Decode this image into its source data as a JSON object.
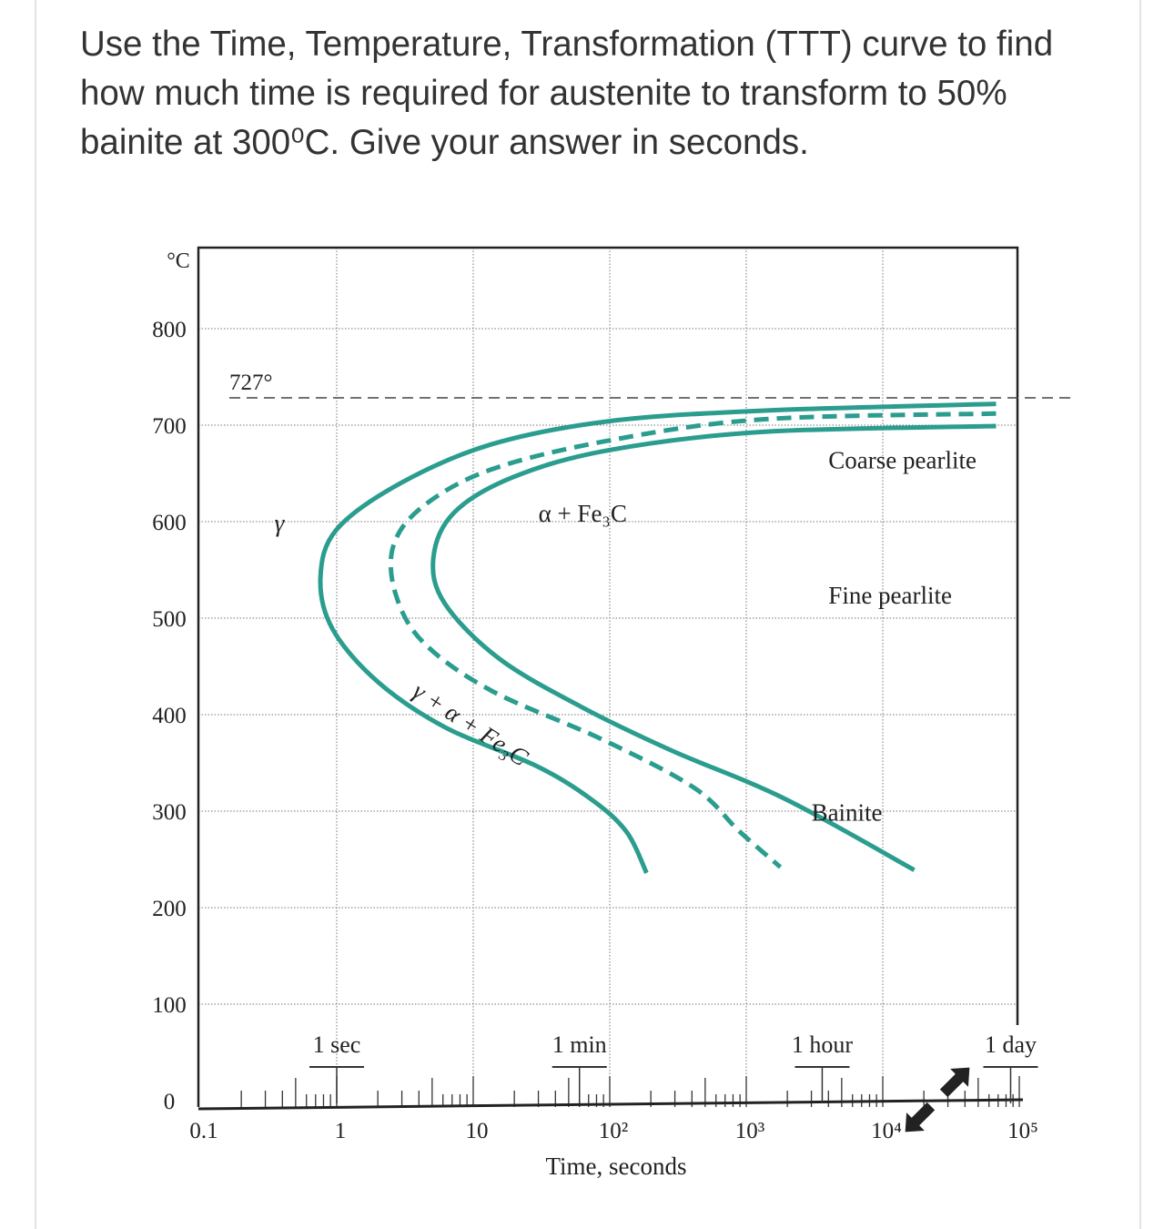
{
  "question": "Use the Time,  Temperature, Transformation (TTT) curve to find how much time is required for austenite to transform to 50% bainite at 300⁰C. Give your answer in seconds.",
  "chart_data": {
    "type": "line",
    "title": "",
    "xlabel": "Time, seconds",
    "ylabel": "°C",
    "x_scale": "log",
    "xlim": [
      0.1,
      100000
    ],
    "ylim": [
      0,
      880
    ],
    "grid": true,
    "x_ticks": [
      "0.1",
      "1",
      "10",
      "10²",
      "10³",
      "10⁴",
      "10⁵"
    ],
    "x_tick_values": [
      0.1,
      1,
      10,
      100,
      1000,
      10000,
      100000
    ],
    "y_ticks": [
      "0",
      "100",
      "200",
      "300",
      "400",
      "500",
      "600",
      "700",
      "800"
    ],
    "y_tick_values": [
      0,
      100,
      200,
      300,
      400,
      500,
      600,
      700,
      800
    ],
    "eutectoid": {
      "label": "727°",
      "value": 727
    },
    "time_markers": [
      {
        "label": "1 sec",
        "value": 1
      },
      {
        "label": "1 min",
        "value": 60
      },
      {
        "label": "1 hour",
        "value": 3600
      },
      {
        "label": "1 day",
        "value": 86400
      }
    ],
    "series": [
      {
        "style": "solid",
        "color": "#2a9d8f",
        "x": [
          67600,
          1318,
          98,
          13.5,
          2.95,
          1.0,
          0.76,
          0.93,
          2.0,
          6.2,
          28.8,
          72,
          132,
          186
        ],
        "y": [
          722,
          715,
          704,
          680,
          640,
          592,
          542,
          489,
          434,
          387,
          347,
          313,
          279,
          236
        ]
      },
      {
        "style": "dashed",
        "color": "#2a9d8f",
        "x": [
          67600,
          1318,
          98,
          13.5,
          4.3,
          2.6,
          2.7,
          4.3,
          13.5,
          89,
          417,
          891,
          1778
        ],
        "y": [
          712,
          706,
          684,
          654,
          616,
          575,
          525,
          475,
          425,
          374,
          324,
          279,
          242
        ]
      },
      {
        "style": "solid",
        "color": "#2a9d8f",
        "x": [
          67600,
          1318,
          98,
          19.5,
          7.2,
          5.1,
          6.2,
          15.5,
          62,
          282,
          1905,
          17000
        ],
        "y": [
          699,
          693,
          674,
          646,
          609,
          562,
          515,
          458,
          408,
          363,
          313,
          239
        ]
      }
    ],
    "annotations": [
      {
        "text": "γ",
        "x": 0.35,
        "y": 590
      },
      {
        "text": "α + Fe₃C",
        "x": 30,
        "y": 600
      },
      {
        "text": "γ + α + Fe₃C",
        "x": 3.5,
        "y": 420
      },
      {
        "text": "Coarse pearlite",
        "x": 4000,
        "y": 655
      },
      {
        "text": "Fine pearlite",
        "x": 4000,
        "y": 515
      },
      {
        "text": "Bainite",
        "x": 3000,
        "y": 290
      }
    ]
  },
  "icons": {
    "expand": "expand-arrows-icon"
  }
}
